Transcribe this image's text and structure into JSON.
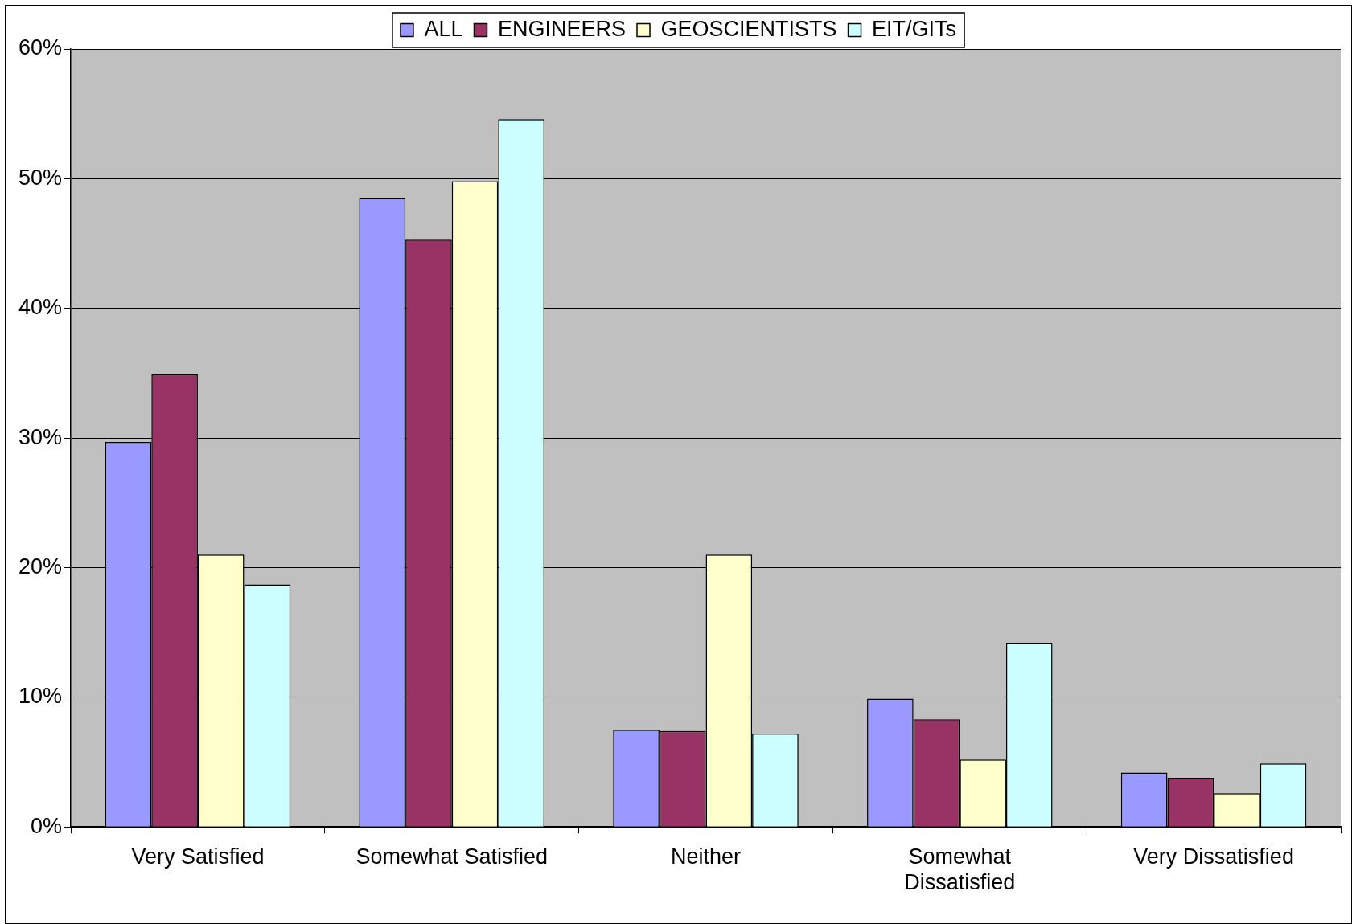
{
  "chart_data": {
    "type": "bar",
    "categories": [
      "Very Satisfied",
      "Somewhat Satisfied",
      "Neither",
      "Somewhat Dissatisfied",
      "Very Dissatisfied"
    ],
    "series": [
      {
        "name": "ALL",
        "color": "#9999ff",
        "values": [
          29.7,
          48.5,
          7.5,
          9.9,
          4.2
        ]
      },
      {
        "name": "ENGINEERS",
        "color": "#993366",
        "values": [
          34.9,
          45.3,
          7.4,
          8.3,
          3.8
        ]
      },
      {
        "name": "GEOSCIENTISTS",
        "color": "#ffffcc",
        "values": [
          21.0,
          49.8,
          21.0,
          5.2,
          2.6
        ]
      },
      {
        "name": "EIT/GITs",
        "color": "#ccffff",
        "values": [
          18.7,
          54.6,
          7.2,
          14.2,
          4.9
        ]
      }
    ],
    "ylim": [
      0,
      60
    ],
    "yticks": [
      {
        "value": 0,
        "label": "0%"
      },
      {
        "value": 10,
        "label": "10%"
      },
      {
        "value": 20,
        "label": "20%"
      },
      {
        "value": 30,
        "label": "30%"
      },
      {
        "value": 40,
        "label": "40%"
      },
      {
        "value": 50,
        "label": "50%"
      },
      {
        "value": 60,
        "label": "60%"
      }
    ],
    "grid": "y",
    "legend": "top"
  }
}
